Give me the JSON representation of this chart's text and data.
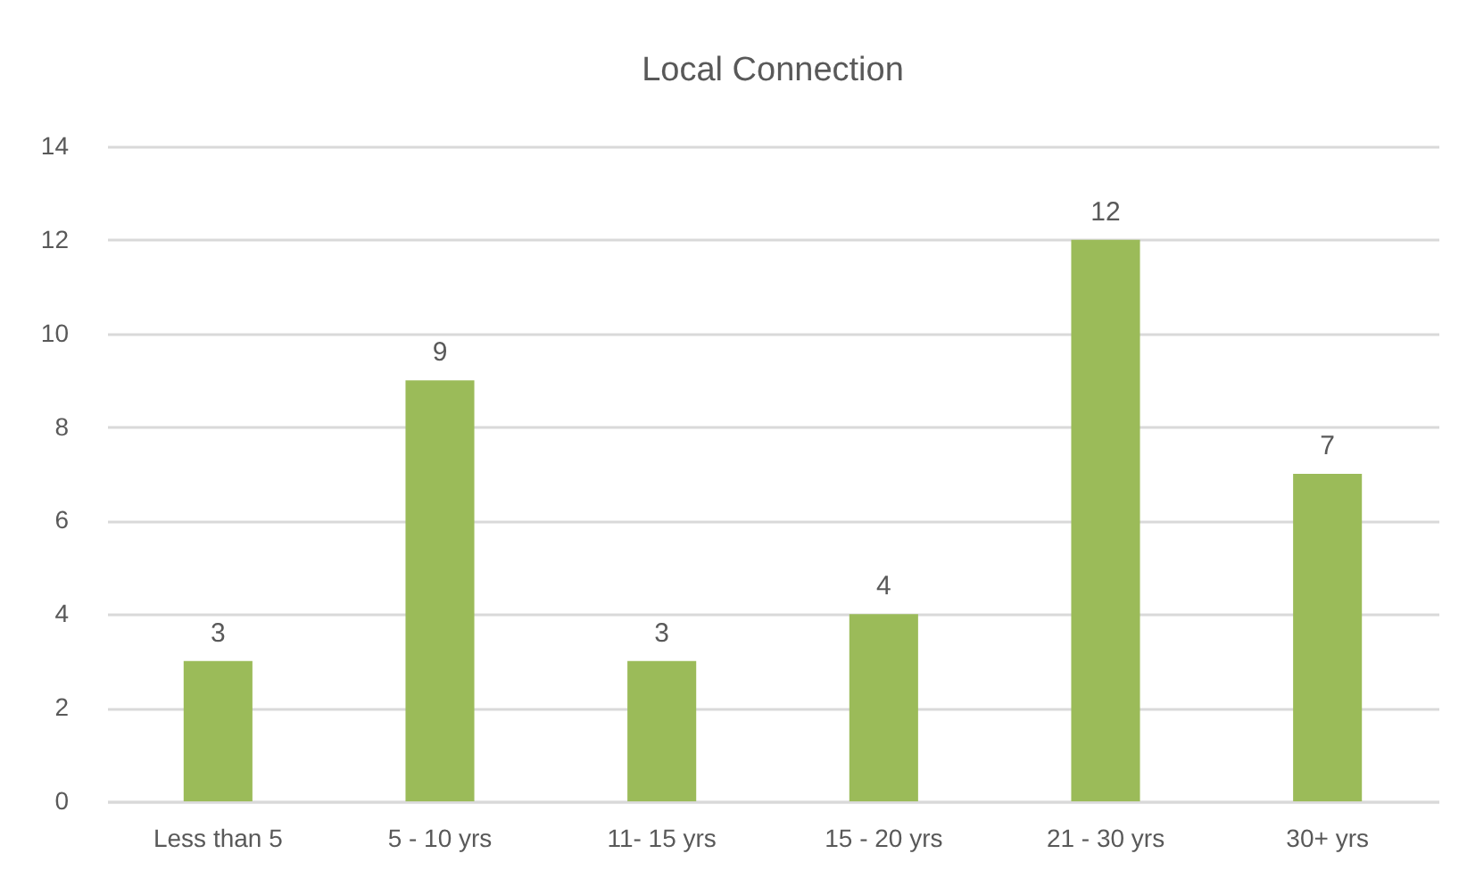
{
  "chart_data": {
    "type": "bar",
    "title": "Local Connection",
    "categories": [
      "Less than 5",
      "5 - 10 yrs",
      "11- 15 yrs",
      "15 - 20 yrs",
      "21 - 30 yrs",
      "30+ yrs"
    ],
    "values": [
      3,
      9,
      3,
      4,
      12,
      7
    ],
    "color": "#9bbb59",
    "ylim": [
      0,
      14
    ],
    "yticks": [
      0,
      2,
      4,
      6,
      8,
      10,
      12,
      14
    ],
    "grid": "y",
    "data_labels": true
  }
}
